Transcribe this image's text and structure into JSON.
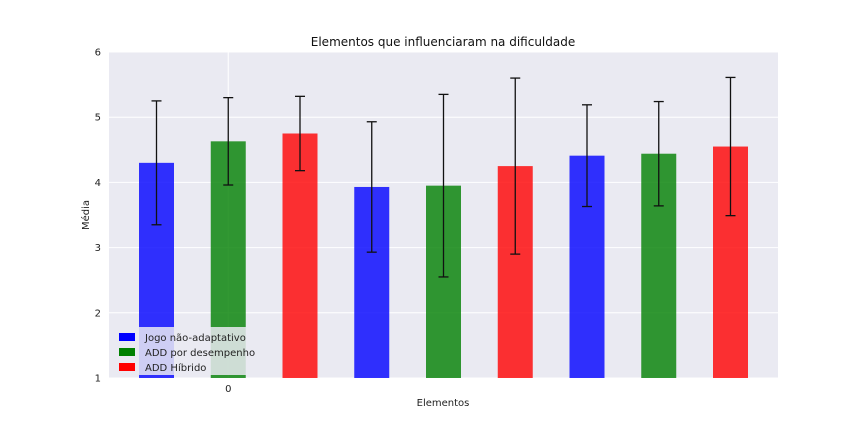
{
  "chart_data": {
    "type": "bar",
    "title": "Elementos que influenciaram na dificuldade",
    "xlabel": "Elementos",
    "ylabel": "Média",
    "ylim": [
      1,
      6
    ],
    "yticks": [
      "1",
      "2",
      "3",
      "4",
      "5",
      "6"
    ],
    "xticks": [
      {
        "label": "0",
        "bar_index": 1
      }
    ],
    "grid": true,
    "legend_position": "lower-left",
    "series": [
      {
        "name": "Jogo não-adaptativo",
        "color": "#0000ff",
        "bar_indices": [
          0,
          3,
          6
        ]
      },
      {
        "name": "ADD por desempenho",
        "color": "#008000",
        "bar_indices": [
          1,
          4,
          7
        ]
      },
      {
        "name": "ADD Híbrido",
        "color": "#ff0000",
        "bar_indices": [
          2,
          5,
          8
        ]
      }
    ],
    "bars": [
      {
        "series": 0,
        "value": 4.3,
        "err": 0.95
      },
      {
        "series": 1,
        "value": 4.63,
        "err": 0.67
      },
      {
        "series": 2,
        "value": 4.75,
        "err": 0.57
      },
      {
        "series": 0,
        "value": 3.93,
        "err": 1.0
      },
      {
        "series": 1,
        "value": 3.95,
        "err": 1.4
      },
      {
        "series": 2,
        "value": 4.25,
        "err": 1.35
      },
      {
        "series": 0,
        "value": 4.41,
        "err": 0.78
      },
      {
        "series": 1,
        "value": 4.44,
        "err": 0.8
      },
      {
        "series": 2,
        "value": 4.55,
        "err": 1.06
      }
    ]
  }
}
